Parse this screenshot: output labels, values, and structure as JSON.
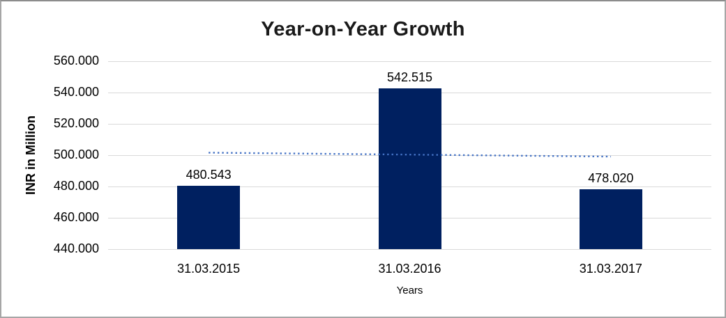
{
  "chart_data": {
    "type": "bar",
    "title": "Year-on-Year Growth",
    "xlabel": "Years",
    "ylabel": "INR in Million",
    "categories": [
      "31.03.2015",
      "31.03.2016",
      "31.03.2017"
    ],
    "values": [
      480.543,
      542.515,
      478.02
    ],
    "data_labels": [
      "480.543",
      "542.515",
      "478.020"
    ],
    "ylim": [
      440,
      560
    ],
    "yticks": [
      {
        "value": 560,
        "label": "560.000"
      },
      {
        "value": 540,
        "label": "540.000"
      },
      {
        "value": 520,
        "label": "520.000"
      },
      {
        "value": 500,
        "label": "500.000"
      },
      {
        "value": 480,
        "label": "480.000"
      },
      {
        "value": 460,
        "label": "460.000"
      },
      {
        "value": 440,
        "label": "440.000"
      }
    ],
    "grid": "horizontal",
    "legend": "none",
    "trendline": {
      "type": "linear",
      "style": "dotted",
      "start_value": 501.6,
      "end_value": 499.1
    },
    "colors": {
      "bar": "#002060",
      "trendline": "#4472C4",
      "gridline": "#D9D9D9",
      "title_text": "#1A1A1A",
      "axis_text": "#000000",
      "frame_border": "#A6A6A6"
    }
  }
}
